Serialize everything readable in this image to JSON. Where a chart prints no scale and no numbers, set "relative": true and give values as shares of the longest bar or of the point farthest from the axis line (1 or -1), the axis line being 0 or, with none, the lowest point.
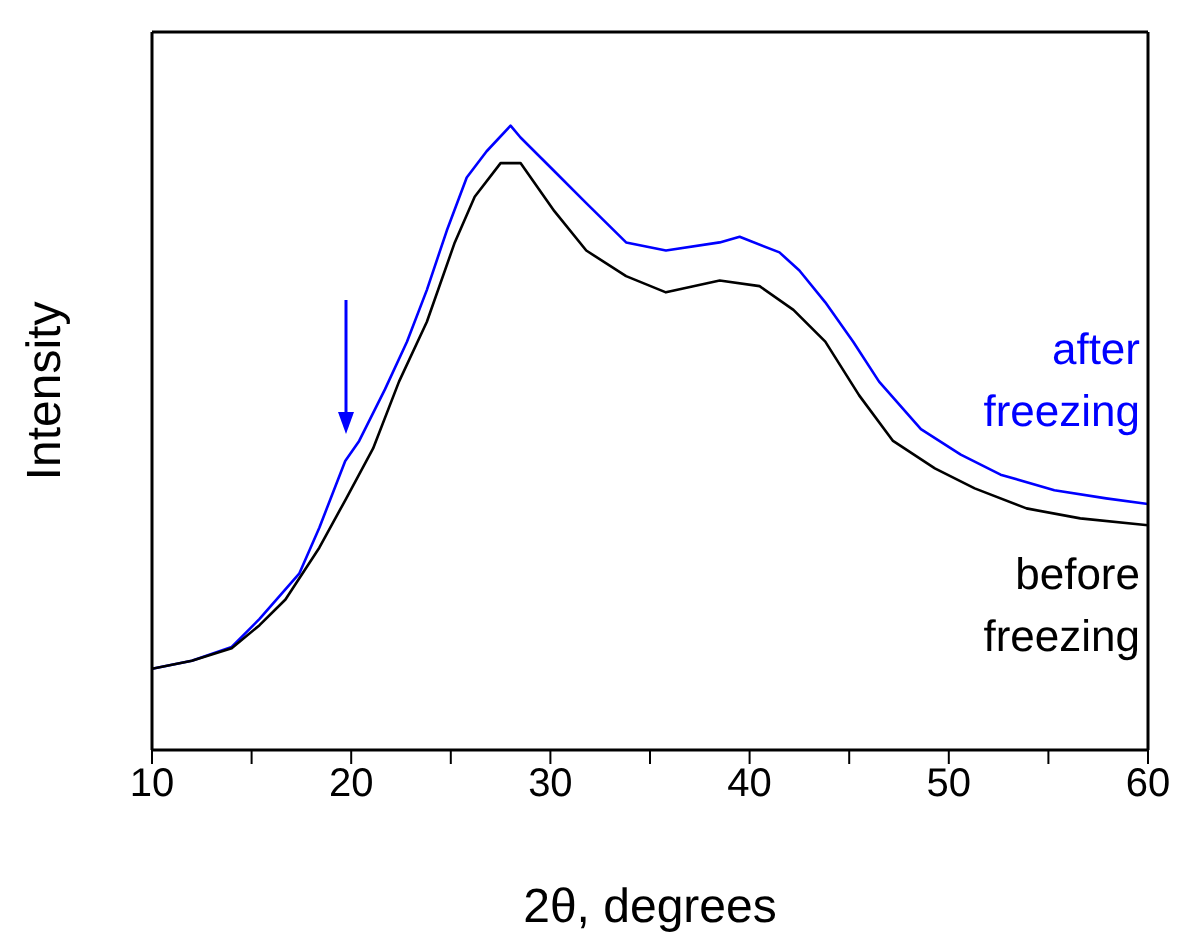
{
  "chart_data": {
    "type": "line",
    "xlabel": "2θ, degrees",
    "ylabel": "Intensity",
    "relative": true,
    "xlim": [
      10,
      60
    ],
    "xticks": [
      10,
      {
        "value": 15,
        "label": null
      },
      20,
      {
        "value": 25,
        "label": null
      },
      30,
      {
        "value": 35,
        "label": null
      },
      40,
      {
        "value": 45,
        "label": null
      },
      50,
      {
        "value": 55,
        "label": null
      },
      60
    ],
    "marker": "none",
    "line_style": "solid",
    "series": [
      {
        "name": "after freezing",
        "color": "#0000ff",
        "x": [
          10,
          12,
          14,
          15.4,
          17.4,
          18.4,
          19.7,
          20.4,
          21.7,
          22.8,
          23.8,
          24.8,
          25.8,
          26.8,
          28,
          28.5,
          30.2,
          31.8,
          33.8,
          35.8,
          38.5,
          39.5,
          41.5,
          42.5,
          43.8,
          45.2,
          46.5,
          48.6,
          50.6,
          52.6,
          55.3,
          57.9,
          60
        ],
        "values": [
          0.13,
          0.143,
          0.165,
          0.21,
          0.283,
          0.356,
          0.463,
          0.495,
          0.578,
          0.654,
          0.737,
          0.832,
          0.917,
          0.959,
          1,
          0.981,
          0.927,
          0.876,
          0.813,
          0.8,
          0.813,
          0.822,
          0.797,
          0.768,
          0.717,
          0.654,
          0.59,
          0.514,
          0.473,
          0.441,
          0.416,
          0.403,
          0.394
        ]
      },
      {
        "name": "before freezing",
        "color": "#000000",
        "x": [
          10,
          12,
          14,
          15.4,
          16.7,
          18.4,
          19.7,
          21.1,
          22.4,
          23.8,
          25.2,
          26.2,
          27.5,
          28.5,
          30.2,
          31.8,
          33.8,
          35.8,
          38.5,
          40.5,
          42.2,
          43.8,
          45.5,
          47.2,
          49.3,
          51.3,
          53.9,
          56.6,
          60
        ],
        "values": [
          0.13,
          0.143,
          0.163,
          0.2,
          0.241,
          0.324,
          0.4,
          0.483,
          0.59,
          0.686,
          0.813,
          0.886,
          0.94,
          0.94,
          0.863,
          0.8,
          0.759,
          0.733,
          0.752,
          0.743,
          0.705,
          0.654,
          0.568,
          0.495,
          0.451,
          0.419,
          0.387,
          0.371,
          0.36
        ]
      }
    ]
  }
}
